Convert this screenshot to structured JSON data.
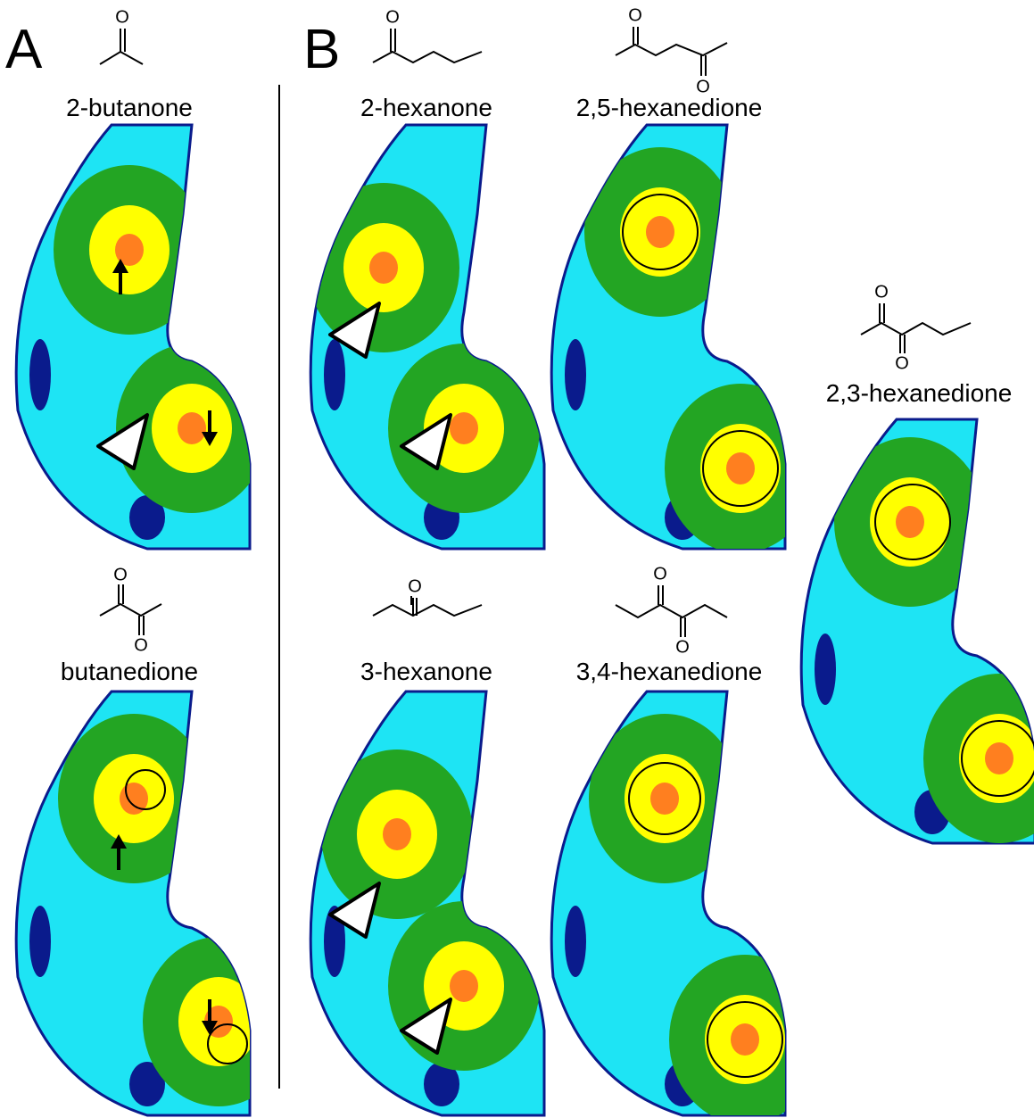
{
  "panels": [
    {
      "label": "A",
      "compounds": [
        {
          "name": "2-butanone",
          "atoms": [
            "O"
          ]
        },
        {
          "name": "butanedione",
          "atoms": [
            "O",
            "O"
          ]
        }
      ]
    },
    {
      "label": "B",
      "compounds": [
        {
          "name": "2-hexanone",
          "atoms": [
            "O"
          ]
        },
        {
          "name": "3-hexanone",
          "atoms": [
            "O"
          ]
        },
        {
          "name": "2,5-hexanedione",
          "atoms": [
            "O",
            "O"
          ]
        },
        {
          "name": "3,4-hexanedione",
          "atoms": [
            "O",
            "O"
          ]
        },
        {
          "name": "2,3-hexanedione",
          "atoms": [
            "O",
            "O"
          ]
        }
      ]
    }
  ]
}
